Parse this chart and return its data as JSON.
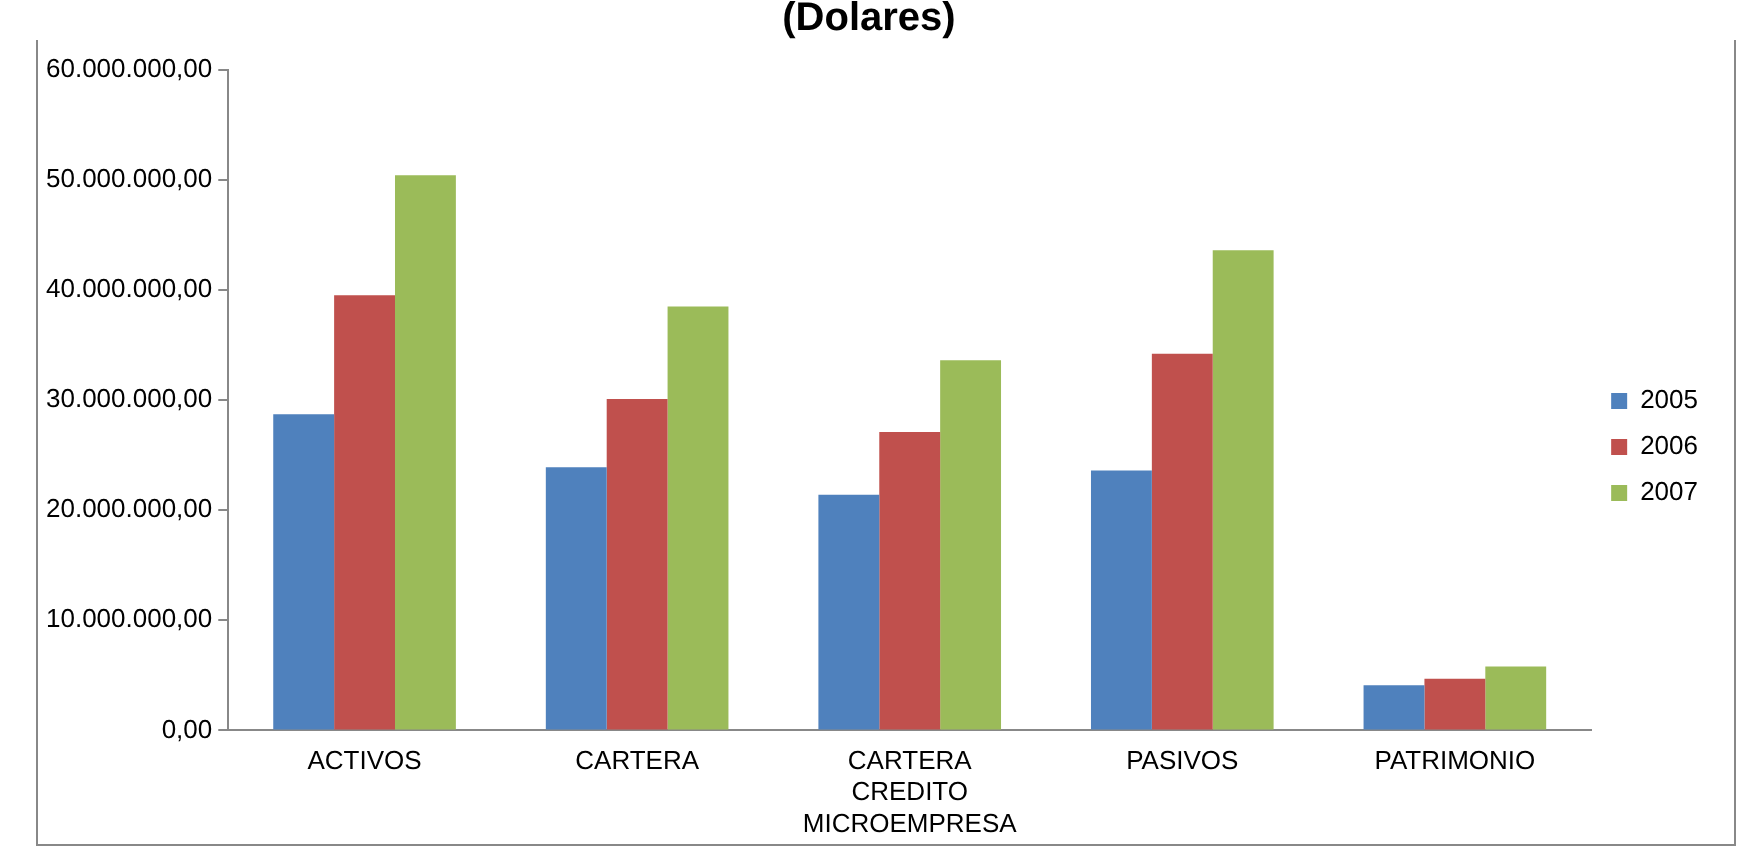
{
  "chart_data": {
    "type": "bar",
    "title": "(Dolares)",
    "categories": [
      "ACTIVOS",
      "CARTERA",
      "CARTERA CREDITO MICROEMPRESA",
      "PASIVOS",
      "PATRIMONIO"
    ],
    "series": [
      {
        "name": "2005",
        "color": "#4f81bd",
        "values": [
          28700000,
          23900000,
          21400000,
          23600000,
          4100000
        ]
      },
      {
        "name": "2006",
        "color": "#c0504d",
        "values": [
          39500000,
          30100000,
          27100000,
          34200000,
          4700000
        ]
      },
      {
        "name": "2007",
        "color": "#9bbb59",
        "values": [
          50400000,
          38500000,
          33600000,
          43600000,
          5800000
        ]
      }
    ],
    "ylim": [
      0,
      60000000
    ],
    "yticks": [
      {
        "value": 0,
        "label": "0,00"
      },
      {
        "value": 10000000,
        "label": "10.000.000,00"
      },
      {
        "value": 20000000,
        "label": "20.000.000,00"
      },
      {
        "value": 30000000,
        "label": "30.000.000,00"
      },
      {
        "value": 40000000,
        "label": "40.000.000,00"
      },
      {
        "value": 50000000,
        "label": "50.000.000,00"
      },
      {
        "value": 60000000,
        "label": "60.000.000,00"
      }
    ],
    "grid": false,
    "legend": "right"
  }
}
